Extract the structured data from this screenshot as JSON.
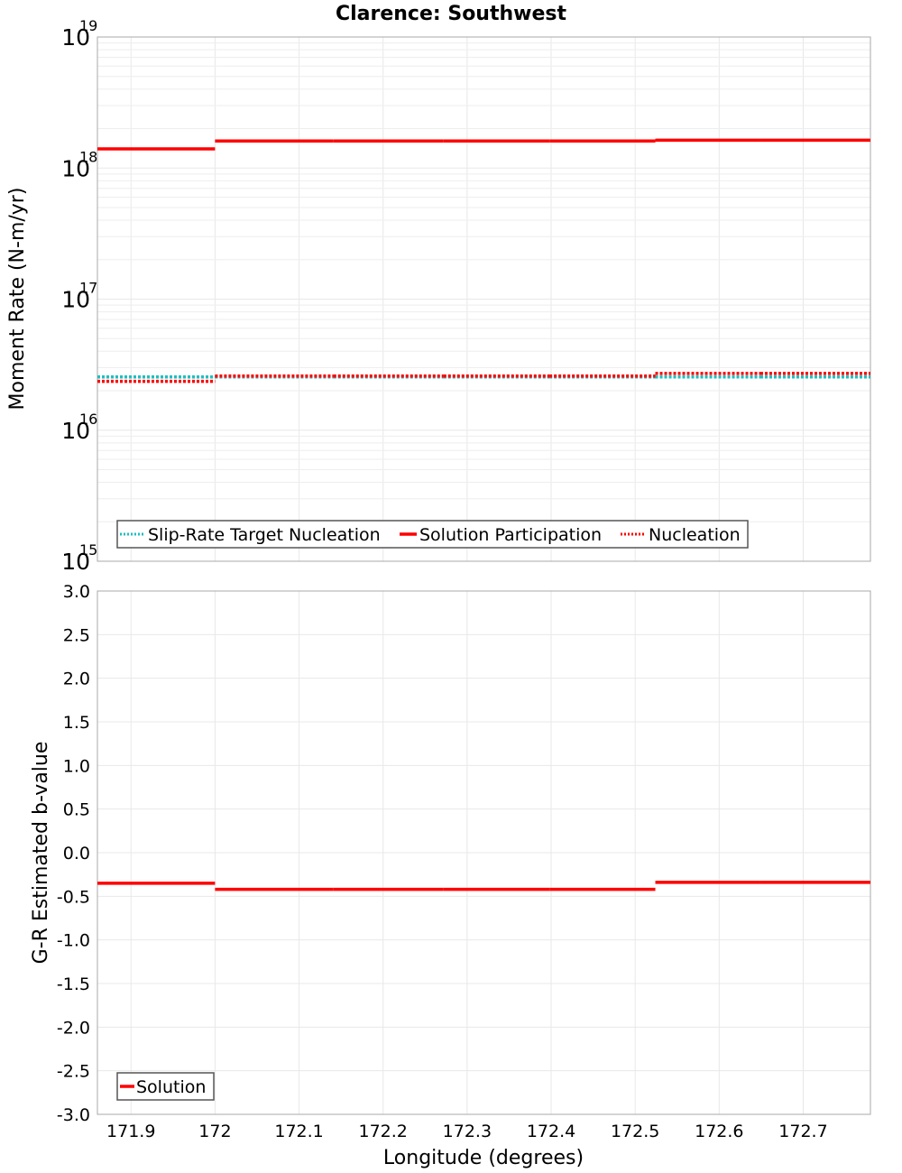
{
  "title": "Clarence: Southwest",
  "colors": {
    "solution": "#ff0000",
    "slip_rate_target": "#1fbfbf",
    "nucleation": "#ff0000",
    "grid": "#e8e8e8",
    "frame": "#a8a8a8"
  },
  "top_plot": {
    "ylabel": "Moment Rate (N-m/yr)",
    "yticks": [
      {
        "base": "10",
        "exp": "19"
      },
      {
        "base": "10",
        "exp": "18"
      },
      {
        "base": "10",
        "exp": "17"
      },
      {
        "base": "10",
        "exp": "16"
      },
      {
        "base": "10",
        "exp": "15"
      }
    ],
    "legend": [
      {
        "label": "Slip-Rate Target Nucleation",
        "style": "dotted",
        "color": "#1fbfbf"
      },
      {
        "label": "Solution Participation",
        "style": "solid",
        "color": "#ff0000"
      },
      {
        "label": "Nucleation",
        "style": "dotted",
        "color": "#ff0000"
      }
    ]
  },
  "bottom_plot": {
    "ylabel": "G-R Estimated b-value",
    "yticks": [
      "3.0",
      "2.5",
      "2.0",
      "1.5",
      "1.0",
      "0.5",
      "0.0",
      "-0.5",
      "-1.0",
      "-1.5",
      "-2.0",
      "-2.5",
      "-3.0"
    ],
    "legend": [
      {
        "label": "Solution",
        "style": "solid",
        "color": "#ff0000"
      }
    ]
  },
  "xaxis": {
    "label": "Longitude (degrees)",
    "ticks": [
      "171.9",
      "172",
      "172.1",
      "172.2",
      "172.3",
      "172.4",
      "172.5",
      "172.6",
      "172.7"
    ]
  },
  "chart_data": [
    {
      "type": "line",
      "title": "Clarence: Southwest",
      "xlabel": "Longitude (degrees)",
      "ylabel": "Moment Rate (N-m/yr)",
      "yscale": "log",
      "ylim": [
        1000000000000000.0,
        1e+19
      ],
      "xlim": [
        171.86,
        172.78
      ],
      "grid": true,
      "legend_position": "lower-left inside",
      "step_boundaries_x": [
        171.86,
        172.0,
        172.141,
        172.272,
        172.398,
        172.524,
        172.649,
        172.78
      ],
      "series": [
        {
          "name": "Slip-Rate Target Nucleation",
          "style": "dotted",
          "color": "#1fbfbf",
          "values": [
            2.55e+16,
            2.55e+16,
            2.55e+16,
            2.55e+16,
            2.55e+16,
            2.55e+16,
            2.55e+16
          ]
        },
        {
          "name": "Solution Participation",
          "style": "solid",
          "color": "#ff0000",
          "values": [
            1.4e+18,
            1.61e+18,
            1.61e+18,
            1.61e+18,
            1.61e+18,
            1.63e+18,
            1.63e+18
          ]
        },
        {
          "name": "Nucleation",
          "style": "dotted",
          "color": "#ff0000",
          "values": [
            2.36e+16,
            2.59e+16,
            2.59e+16,
            2.59e+16,
            2.59e+16,
            2.71e+16,
            2.71e+16
          ]
        }
      ]
    },
    {
      "type": "line",
      "title": "",
      "xlabel": "Longitude (degrees)",
      "ylabel": "G-R Estimated b-value",
      "ylim": [
        -3.0,
        3.0
      ],
      "xlim": [
        171.86,
        172.78
      ],
      "grid": true,
      "legend_position": "lower-left inside",
      "step_boundaries_x": [
        171.86,
        172.0,
        172.141,
        172.272,
        172.398,
        172.524,
        172.649,
        172.78
      ],
      "series": [
        {
          "name": "Solution",
          "style": "solid",
          "color": "#ff0000",
          "values": [
            -0.35,
            -0.42,
            -0.42,
            -0.42,
            -0.42,
            -0.34,
            -0.34
          ]
        }
      ]
    }
  ]
}
